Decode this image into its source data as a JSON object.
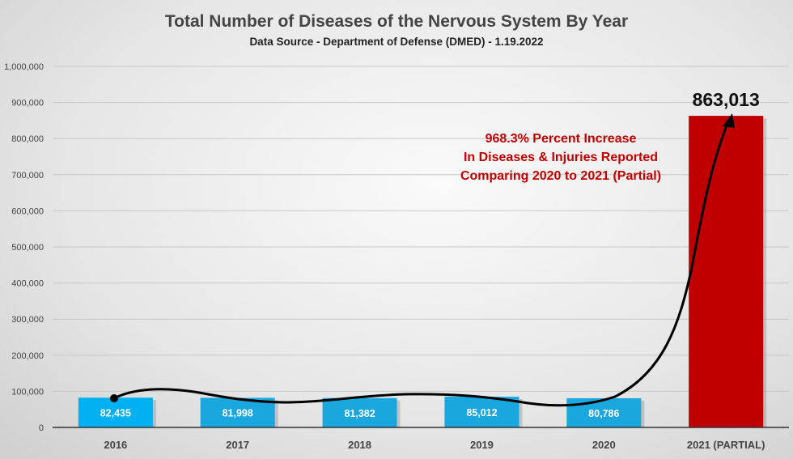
{
  "chart_data": {
    "type": "bar",
    "title": "Total Number of Diseases of the Nervous System By Year",
    "subtitle": "Data Source - Department of Defense (DMED) - 1.19.2022",
    "categories": [
      "2016",
      "2017",
      "2018",
      "2019",
      "2020",
      "2021 (PARTIAL)"
    ],
    "values": [
      82435,
      81998,
      81382,
      85012,
      80786,
      863013
    ],
    "value_labels": [
      "82,435",
      "81,998",
      "81,382",
      "85,012",
      "80,786",
      "863,013"
    ],
    "yticks": [
      "0",
      "100,000",
      "200,000",
      "300,000",
      "400,000",
      "500,000",
      "600,000",
      "700,000",
      "800,000",
      "900,000",
      "1,000,000"
    ],
    "ylim": [
      0,
      1000000
    ],
    "grid": true,
    "annotation": [
      "968.3% Percent Increase",
      "In Diseases & Injuries Reported",
      "Comparing 2020 to 2021 (Partial)"
    ],
    "colors": {
      "bar": "#19a7dd",
      "bar_first": "#00b0f0",
      "highlight": "#c00000"
    }
  }
}
